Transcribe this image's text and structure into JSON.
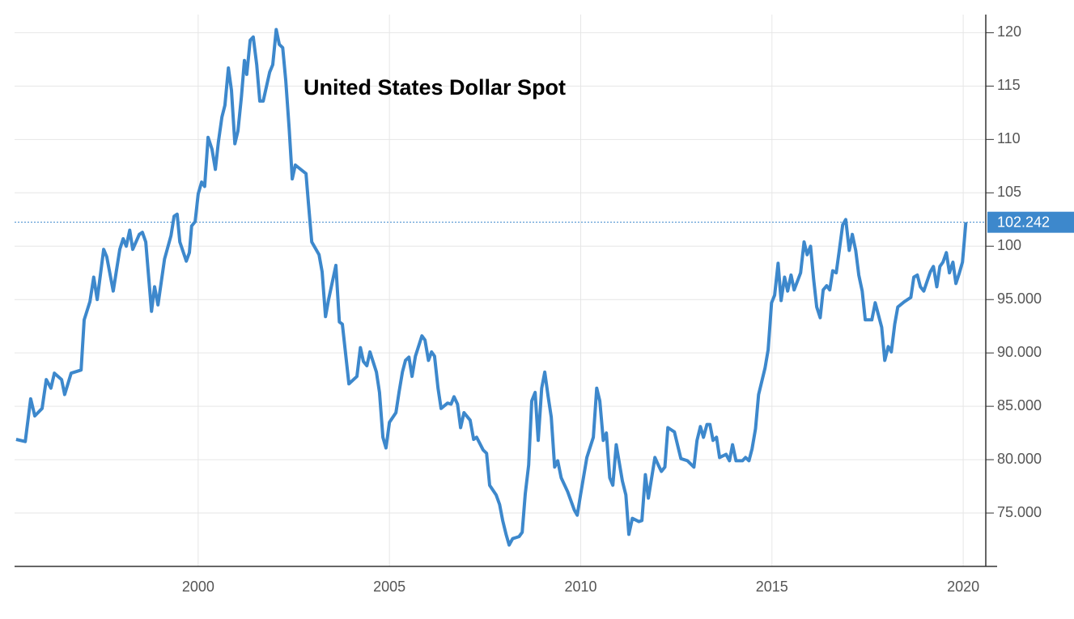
{
  "chart_data": {
    "type": "line",
    "title": "United States Dollar Spot",
    "x": [
      1995.24,
      1995.48,
      1995.62,
      1995.73,
      1995.92,
      1996.03,
      1996.15,
      1996.24,
      1996.43,
      1996.51,
      1996.68,
      1996.94,
      1997.02,
      1997.17,
      1997.27,
      1997.36,
      1997.53,
      1997.61,
      1997.78,
      1997.95,
      1998.04,
      1998.12,
      1998.21,
      1998.29,
      1998.46,
      1998.54,
      1998.63,
      1998.71,
      1998.78,
      1998.86,
      1998.95,
      1999.12,
      1999.29,
      1999.37,
      1999.45,
      1999.52,
      1999.69,
      1999.77,
      1999.83,
      1999.92,
      2000.0,
      2000.09,
      2000.17,
      2000.26,
      2000.36,
      2000.45,
      2000.53,
      2000.62,
      2000.7,
      2000.79,
      2000.87,
      2000.96,
      2001.04,
      2001.13,
      2001.21,
      2001.27,
      2001.36,
      2001.44,
      2001.53,
      2001.61,
      2001.7,
      2001.87,
      2001.95,
      2002.04,
      2002.12,
      2002.21,
      2002.29,
      2002.38,
      2002.46,
      2002.54,
      2002.82,
      2002.88,
      2002.97,
      2003.16,
      2003.24,
      2003.33,
      2003.41,
      2003.6,
      2003.69,
      2003.77,
      2003.94,
      2004.15,
      2004.24,
      2004.32,
      2004.41,
      2004.49,
      2004.66,
      2004.74,
      2004.83,
      2004.91,
      2005.0,
      2005.17,
      2005.25,
      2005.34,
      2005.42,
      2005.51,
      2005.59,
      2005.68,
      2005.85,
      2005.93,
      2006.02,
      2006.1,
      2006.18,
      2006.27,
      2006.35,
      2006.52,
      2006.61,
      2006.69,
      2006.78,
      2006.86,
      2006.95,
      2007.11,
      2007.2,
      2007.28,
      2007.45,
      2007.54,
      2007.62,
      2007.79,
      2007.88,
      2007.96,
      2008.05,
      2008.13,
      2008.22,
      2008.39,
      2008.47,
      2008.55,
      2008.64,
      2008.72,
      2008.81,
      2008.89,
      2008.98,
      2009.06,
      2009.15,
      2009.23,
      2009.32,
      2009.4,
      2009.49,
      2009.66,
      2009.83,
      2009.91,
      2010.0,
      2010.16,
      2010.33,
      2010.42,
      2010.5,
      2010.59,
      2010.67,
      2010.76,
      2010.84,
      2010.93,
      2011.09,
      2011.18,
      2011.26,
      2011.35,
      2011.52,
      2011.6,
      2011.69,
      2011.77,
      2011.94,
      2012.03,
      2012.11,
      2012.2,
      2012.28,
      2012.45,
      2012.53,
      2012.62,
      2012.79,
      2012.96,
      2013.04,
      2013.13,
      2013.21,
      2013.3,
      2013.38,
      2013.46,
      2013.55,
      2013.63,
      2013.8,
      2013.89,
      2013.97,
      2014.06,
      2014.23,
      2014.31,
      2014.4,
      2014.48,
      2014.57,
      2014.65,
      2014.82,
      2014.9,
      2014.99,
      2015.07,
      2015.16,
      2015.24,
      2015.33,
      2015.41,
      2015.5,
      2015.58,
      2015.75,
      2015.84,
      2015.92,
      2016.01,
      2016.09,
      2016.17,
      2016.26,
      2016.34,
      2016.43,
      2016.51,
      2016.59,
      2016.68,
      2016.76,
      2016.85,
      2016.93,
      2017.02,
      2017.1,
      2017.19,
      2017.27,
      2017.36,
      2017.44,
      2017.61,
      2017.7,
      2017.87,
      2017.95,
      2018.04,
      2018.12,
      2018.21,
      2018.29,
      2018.46,
      2018.63,
      2018.71,
      2018.8,
      2018.88,
      2018.97,
      2019.14,
      2019.22,
      2019.31,
      2019.39,
      2019.47,
      2019.56,
      2019.64,
      2019.73,
      2019.81,
      2019.9,
      2019.98,
      2020.07
    ],
    "series": [
      {
        "name": "United States Dollar Spot",
        "color": "#3d88cc",
        "values": [
          81.9,
          81.7,
          85.7,
          84.1,
          84.8,
          87.5,
          86.7,
          88.1,
          87.5,
          86.1,
          88.1,
          88.4,
          93.1,
          94.8,
          97.1,
          95.0,
          99.7,
          99.0,
          95.8,
          99.7,
          100.7,
          100.0,
          101.5,
          99.7,
          101.1,
          101.3,
          100.4,
          96.9,
          93.9,
          96.2,
          94.5,
          98.8,
          101.0,
          102.8,
          103.0,
          100.4,
          98.6,
          99.4,
          101.9,
          102.3,
          104.9,
          106.0,
          105.6,
          110.2,
          109.1,
          107.2,
          109.8,
          112.1,
          113.2,
          116.7,
          114.6,
          109.6,
          110.8,
          114.0,
          117.4,
          116.1,
          119.3,
          119.6,
          117.0,
          113.6,
          113.6,
          116.3,
          117.0,
          120.3,
          118.9,
          118.6,
          115.5,
          111.0,
          106.3,
          107.6,
          106.8,
          104.1,
          100.4,
          99.2,
          97.6,
          93.4,
          95.0,
          98.2,
          92.9,
          92.7,
          87.1,
          87.8,
          90.5,
          89.2,
          88.8,
          90.1,
          88.2,
          86.3,
          82.1,
          81.1,
          83.5,
          84.4,
          86.3,
          88.2,
          89.3,
          89.6,
          87.8,
          89.7,
          91.6,
          91.2,
          89.3,
          90.1,
          89.7,
          86.7,
          84.8,
          85.3,
          85.2,
          85.9,
          85.2,
          83.0,
          84.4,
          83.7,
          81.9,
          82.1,
          80.9,
          80.6,
          77.6,
          76.7,
          75.8,
          74.3,
          73.0,
          72.0,
          72.6,
          72.8,
          73.2,
          76.8,
          79.5,
          85.5,
          86.3,
          81.8,
          86.7,
          88.2,
          85.9,
          84.0,
          79.3,
          79.9,
          78.3,
          77.0,
          75.3,
          74.8,
          76.8,
          80.2,
          82.1,
          86.7,
          85.5,
          81.8,
          82.5,
          78.3,
          77.6,
          81.4,
          78.0,
          76.7,
          73.0,
          74.5,
          74.2,
          74.3,
          78.6,
          76.4,
          80.2,
          79.5,
          78.9,
          79.3,
          83.0,
          82.6,
          81.4,
          80.1,
          79.9,
          79.3,
          81.8,
          83.1,
          82.1,
          83.3,
          83.3,
          81.8,
          82.1,
          80.2,
          80.5,
          79.9,
          81.4,
          79.9,
          79.9,
          80.2,
          79.9,
          81.0,
          82.9,
          86.1,
          88.6,
          90.3,
          94.7,
          95.4,
          98.4,
          94.9,
          97.1,
          95.8,
          97.3,
          95.9,
          97.5,
          100.4,
          99.2,
          100.0,
          96.9,
          94.3,
          93.3,
          95.9,
          96.3,
          95.9,
          97.7,
          97.5,
          99.6,
          102.0,
          102.5,
          99.6,
          101.1,
          99.6,
          97.3,
          95.8,
          93.1,
          93.1,
          94.7,
          92.4,
          89.3,
          90.6,
          90.1,
          92.7,
          94.3,
          94.8,
          95.2,
          97.1,
          97.3,
          96.2,
          95.8,
          97.6,
          98.1,
          96.2,
          98.1,
          98.5,
          99.4,
          97.5,
          98.5,
          96.5,
          97.5,
          98.5,
          102.242
        ]
      }
    ],
    "xlim": [
      1995.2,
      2020.59
    ],
    "xticks": [
      2000,
      2005,
      2010,
      2015,
      2020
    ],
    "ylim": [
      70,
      121.7
    ],
    "yticks": [
      {
        "value": 75,
        "label": "75.000"
      },
      {
        "value": 80,
        "label": "80.000"
      },
      {
        "value": 85,
        "label": "85.000"
      },
      {
        "value": 90,
        "label": "90.000"
      },
      {
        "value": 95,
        "label": "95.000"
      },
      100,
      105,
      110,
      115,
      120
    ],
    "grid": true
  }
}
